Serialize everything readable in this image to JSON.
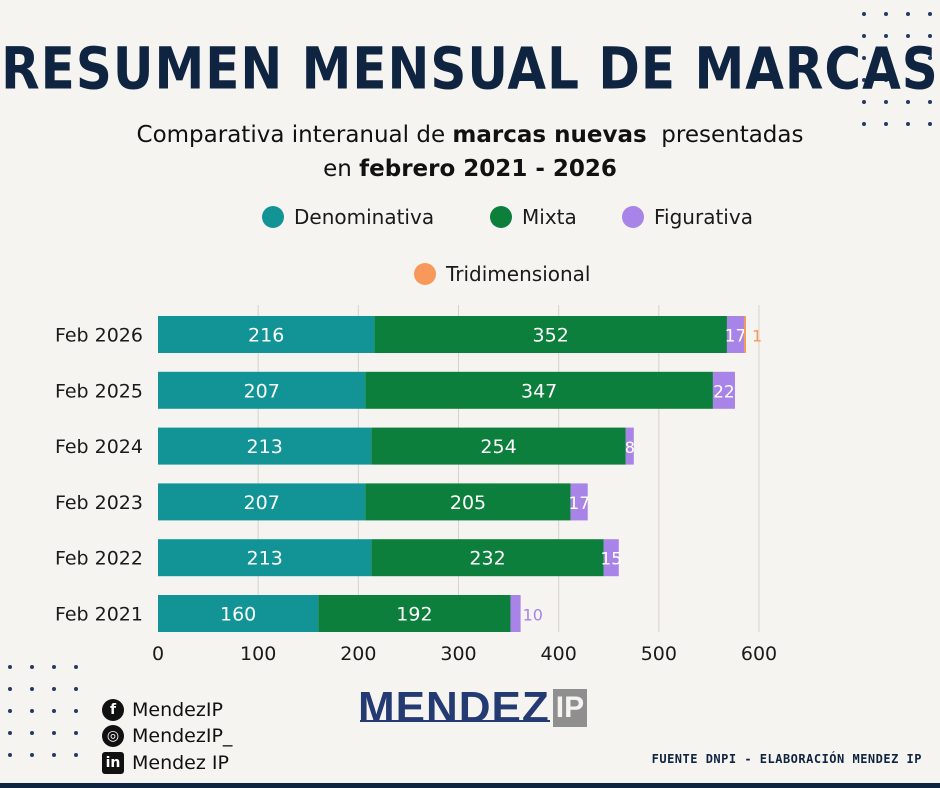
{
  "header": {
    "title": "RESUMEN MENSUAL DE MARCAS",
    "subtitle_part1": "Comparativa interanual de ",
    "subtitle_bold1": "marcas nuevas",
    "subtitle_part2": "  presentadas",
    "subtitle_part3": "en ",
    "subtitle_bold2": "febrero 2021 - 2026"
  },
  "legend": [
    {
      "label": "Denominativa",
      "color": "#129497"
    },
    {
      "label": "Mixta",
      "color": "#0b7f3b"
    },
    {
      "label": "Figurativa",
      "color": "#a883e8"
    },
    {
      "label": "Tridimensional",
      "color": "#f7995a"
    }
  ],
  "chart_data": {
    "type": "bar",
    "orientation": "horizontal",
    "stacked": true,
    "categories": [
      "Feb 2026",
      "Feb 2025",
      "Feb 2024",
      "Feb 2023",
      "Feb 2022",
      "Feb 2021"
    ],
    "series": [
      {
        "name": "Denominativa",
        "color": "#129497",
        "values": [
          216,
          207,
          213,
          207,
          213,
          160
        ]
      },
      {
        "name": "Mixta",
        "color": "#0b7f3b",
        "values": [
          352,
          347,
          254,
          205,
          232,
          192
        ]
      },
      {
        "name": "Figurativa",
        "color": "#a883e8",
        "values": [
          17,
          22,
          8,
          17,
          15,
          10
        ]
      },
      {
        "name": "Tridimensional",
        "color": "#f7995a",
        "values": [
          1,
          null,
          null,
          null,
          null,
          null
        ]
      }
    ],
    "xlim": [
      0,
      600
    ],
    "xticks": [
      0,
      100,
      200,
      300,
      400,
      500,
      600
    ],
    "grid": true,
    "legend_position": "top"
  },
  "social": [
    {
      "icon": "facebook-icon",
      "glyph": "f",
      "label": "MendezIP"
    },
    {
      "icon": "instagram-icon",
      "glyph": "◎",
      "label": "MendezIP_"
    },
    {
      "icon": "linkedin-icon",
      "glyph": "in",
      "label": "Mendez IP"
    }
  ],
  "logo": {
    "name": "MENDEZ",
    "suffix": "IP"
  },
  "footer": {
    "source": "FUENTE DNPI - ELABORACIÓN MENDEZ IP"
  }
}
